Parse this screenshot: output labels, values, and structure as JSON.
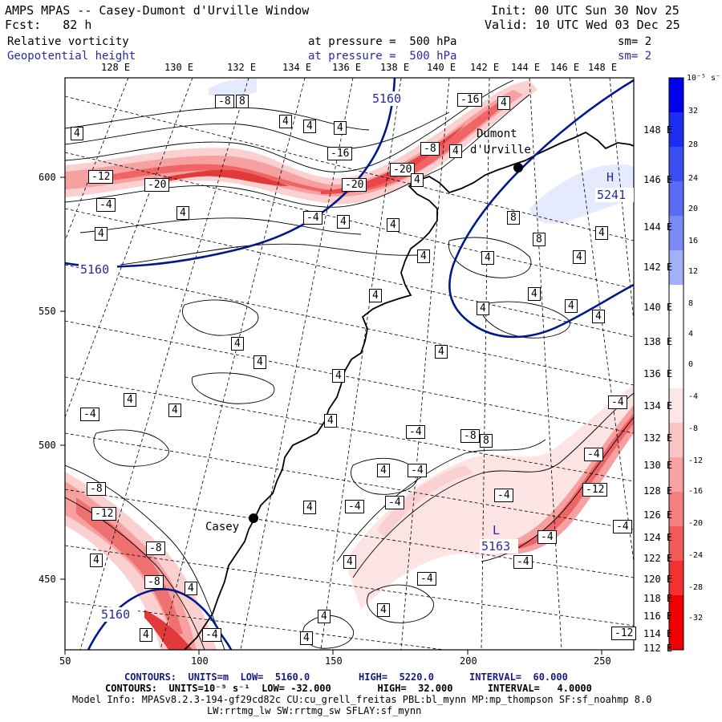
{
  "header": {
    "title": "AMPS MPAS -- Casey-Dumont d'Urville Window",
    "init": "Init: 00 UTC Sun 30 Nov 25",
    "fcst": "Fcst:   82 h",
    "valid": "Valid: 10 UTC Wed 03 Dec 25",
    "field1_name": "Relative vorticity",
    "field1_level": "at pressure =  500 hPa",
    "field1_sm": "sm= 2",
    "field2_name": "Geopotential height",
    "field2_level": "at pressure =  500 hPa",
    "field2_sm": "sm= 2"
  },
  "top_lon_labels": [
    "128 E",
    "130 E",
    "132 E",
    "134 E",
    "136 E",
    "138 E",
    "140 E",
    "142 E",
    "144 E",
    "146 E",
    "148 E"
  ],
  "right_lon_labels": [
    "148 E",
    "146 E",
    "144 E",
    "142 E",
    "140 E",
    "138 E",
    "136 E",
    "134 E",
    "132 E",
    "130 E",
    "128 E",
    "126 E",
    "124 E",
    "122 E",
    "120 E",
    "118 E",
    "116 E",
    "114 E",
    "112 E"
  ],
  "x_axis_ticks": [
    "50",
    "100",
    "150",
    "200",
    "250"
  ],
  "y_axis_ticks": [
    "600",
    "550",
    "500",
    "450"
  ],
  "colorbar": {
    "unit": "10⁻⁵ s⁻¹",
    "labels": [
      "32",
      "28",
      "24",
      "20",
      "16",
      "12",
      "8",
      "4",
      "0",
      "-4",
      "-8",
      "-12",
      "-16",
      "-20",
      "-24",
      "-28",
      "-32"
    ],
    "colors": [
      "#0000ee",
      "#1c2ff0",
      "#3a4ff2",
      "#5a6cf3",
      "#7b8bf5",
      "#9caaf7",
      "#c0c9fa",
      "#e4e8fd",
      "#ffffff",
      "#ffffff",
      "#fde6e6",
      "#fbc5c5",
      "#f9a2a2",
      "#f67f7f",
      "#f35a5a",
      "#f23232",
      "#f00000"
    ]
  },
  "places": {
    "dumont": "Dumont",
    "durville": "d'Urville",
    "casey": "Casey"
  },
  "height_labels": {
    "h5160_top": "5160",
    "h5160_left": "5160",
    "h5160_bl": "5160",
    "h5163": "5163",
    "h5241": "5241",
    "high_marker": "H",
    "low_marker": "L"
  },
  "vort_labels": [
    "-8",
    "8",
    "-16",
    "4",
    "4",
    "4",
    "4",
    "4",
    "-16",
    "-8",
    "4",
    "-12",
    "-20",
    "-20",
    "-20",
    "-4",
    "4",
    "-4",
    "4",
    "4",
    "8",
    "8",
    "4",
    "4",
    "4",
    "4",
    "4",
    "4",
    "4",
    "4",
    "4",
    "4",
    "4",
    "4",
    "4",
    "4",
    "4",
    "4",
    "-4",
    "4",
    "-4",
    "-8",
    "8",
    "4",
    "-4",
    "4",
    "-4",
    "-4",
    "-8",
    "-12",
    "-4",
    "-4",
    "-12",
    "-8",
    "-4",
    "-4",
    "4",
    "-8",
    "4",
    "-4",
    "4",
    "4",
    "4",
    "-4",
    "4",
    "4",
    "-4",
    "-4",
    "-12",
    "4"
  ],
  "footer": {
    "line1_left": "CONTOURS:  UNITS=m  LOW=  5160.0",
    "line1_mid": "HIGH=  5220.0",
    "line1_right": "INTERVAL=  60.000",
    "line2": "CONTOURS:  UNITS=10⁻⁵ s⁻¹  LOW= -32.000        HIGH=  32.000      INTERVAL=   4.0000",
    "line3": "Model Info: MPASv8.2.3-194-gf29cd82c CU:cu_grell_freitas PBL:bl_mynn MP:mp_thompson SF:sf_noahmp 8.0",
    "line4": "LW:rrtmg_lw SW:rrtmg_sw SFLAY:sf_mynn"
  }
}
